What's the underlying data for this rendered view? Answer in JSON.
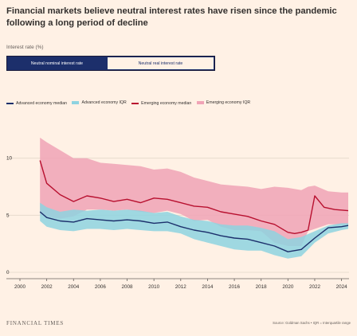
{
  "title": "Financial markets believe neutral interest rates have risen since the pandemic following a long period of decline",
  "subtitle": "Interest rate (%)",
  "toggle": {
    "active_label": "Neutral nominal interest rate",
    "inactive_label": "Neutral real interest rate"
  },
  "legend": [
    {
      "label": "Advanced economy median",
      "color": "#1c2f6b",
      "kind": "line"
    },
    {
      "label": "Advanced economy IQR",
      "color": "#8ed3e0",
      "kind": "area"
    },
    {
      "label": "Emerging economy median",
      "color": "#b8102f",
      "kind": "line"
    },
    {
      "label": "Emerging economy IQR",
      "color": "#f0a3b6",
      "kind": "area"
    }
  ],
  "footer": {
    "brand": "FINANCIAL TIMES",
    "source": "Source: Goldman Sachs • IQR = Interquartile range"
  },
  "chart_data": {
    "type": "area",
    "y_ticks": [
      0,
      5,
      10
    ],
    "x_ticks": [
      "2000",
      "2002",
      "2004",
      "2006",
      "2008",
      "2010",
      "2012",
      "2014",
      "2016",
      "2018",
      "2020",
      "2022",
      "2024"
    ],
    "xlim": [
      2000,
      2024.5
    ],
    "ylim": [
      0,
      12
    ],
    "series": [
      {
        "name": "Emerging economy IQR",
        "kind": "band",
        "color": "#f0a3b6",
        "x": [
          2001.5,
          2002,
          2003,
          2004,
          2005,
          2006,
          2007,
          2008,
          2009,
          2010,
          2011,
          2012,
          2013,
          2014,
          2015,
          2016,
          2017,
          2018,
          2019,
          2020,
          2021,
          2021.5,
          2022,
          2023,
          2024,
          2024.5
        ],
        "high": [
          11.8,
          11.4,
          10.7,
          10.0,
          10.0,
          9.6,
          9.5,
          9.4,
          9.3,
          9.0,
          9.1,
          8.8,
          8.3,
          8.0,
          7.7,
          7.6,
          7.5,
          7.3,
          7.5,
          7.4,
          7.2,
          7.5,
          7.6,
          7.1,
          7.0,
          7.0
        ],
        "low": [
          5.1,
          4.9,
          4.7,
          4.9,
          5.5,
          5.5,
          5.4,
          5.5,
          5.3,
          5.2,
          5.4,
          5.1,
          4.5,
          4.6,
          4.0,
          3.7,
          3.7,
          3.6,
          2.6,
          2.3,
          2.3,
          3.6,
          3.8,
          4.2,
          4.2,
          4.2
        ]
      },
      {
        "name": "Advanced economy IQR",
        "kind": "band",
        "color": "#8ed3e0",
        "x": [
          2001.5,
          2002,
          2003,
          2004,
          2005,
          2006,
          2007,
          2008,
          2009,
          2010,
          2011,
          2012,
          2013,
          2014,
          2015,
          2016,
          2017,
          2018,
          2019,
          2020,
          2021,
          2022,
          2023,
          2024,
          2024.5
        ],
        "high": [
          6.1,
          5.7,
          5.3,
          5.5,
          5.4,
          5.5,
          5.4,
          5.5,
          5.4,
          5.2,
          5.3,
          4.9,
          4.6,
          4.5,
          4.2,
          4.1,
          4.1,
          3.9,
          3.6,
          2.9,
          3.1,
          3.6,
          4.1,
          4.3,
          4.3
        ],
        "low": [
          4.5,
          4.0,
          3.7,
          3.6,
          3.8,
          3.8,
          3.7,
          3.8,
          3.7,
          3.6,
          3.6,
          3.4,
          2.9,
          2.6,
          2.3,
          2.0,
          1.9,
          1.9,
          1.5,
          1.2,
          1.4,
          2.6,
          3.4,
          3.7,
          3.8
        ]
      },
      {
        "name": "Emerging economy median",
        "kind": "line",
        "color": "#b8102f",
        "x": [
          2001.5,
          2002,
          2003,
          2004,
          2005,
          2006,
          2007,
          2008,
          2009,
          2010,
          2011,
          2012,
          2013,
          2014,
          2015,
          2016,
          2017,
          2018,
          2019,
          2020,
          2020.5,
          2021,
          2021.5,
          2022,
          2022.7,
          2023.5,
          2024.5
        ],
        "y": [
          9.8,
          7.8,
          6.8,
          6.2,
          6.7,
          6.5,
          6.2,
          6.4,
          6.1,
          6.5,
          6.4,
          6.1,
          5.8,
          5.7,
          5.3,
          5.1,
          4.9,
          4.5,
          4.2,
          3.5,
          3.4,
          3.5,
          3.7,
          6.7,
          5.7,
          5.5,
          5.4
        ]
      },
      {
        "name": "Advanced economy median",
        "kind": "line",
        "color": "#1c2f6b",
        "x": [
          2001.5,
          2002,
          2003,
          2004,
          2005,
          2006,
          2007,
          2008,
          2009,
          2010,
          2011,
          2012,
          2013,
          2014,
          2015,
          2016,
          2017,
          2018,
          2019,
          2020,
          2021,
          2022,
          2023,
          2024,
          2024.5
        ],
        "y": [
          5.3,
          4.8,
          4.5,
          4.4,
          4.7,
          4.6,
          4.5,
          4.6,
          4.5,
          4.3,
          4.4,
          4.0,
          3.7,
          3.5,
          3.2,
          3.0,
          2.9,
          2.6,
          2.3,
          1.8,
          2.0,
          3.0,
          3.9,
          4.0,
          4.1
        ]
      }
    ]
  }
}
